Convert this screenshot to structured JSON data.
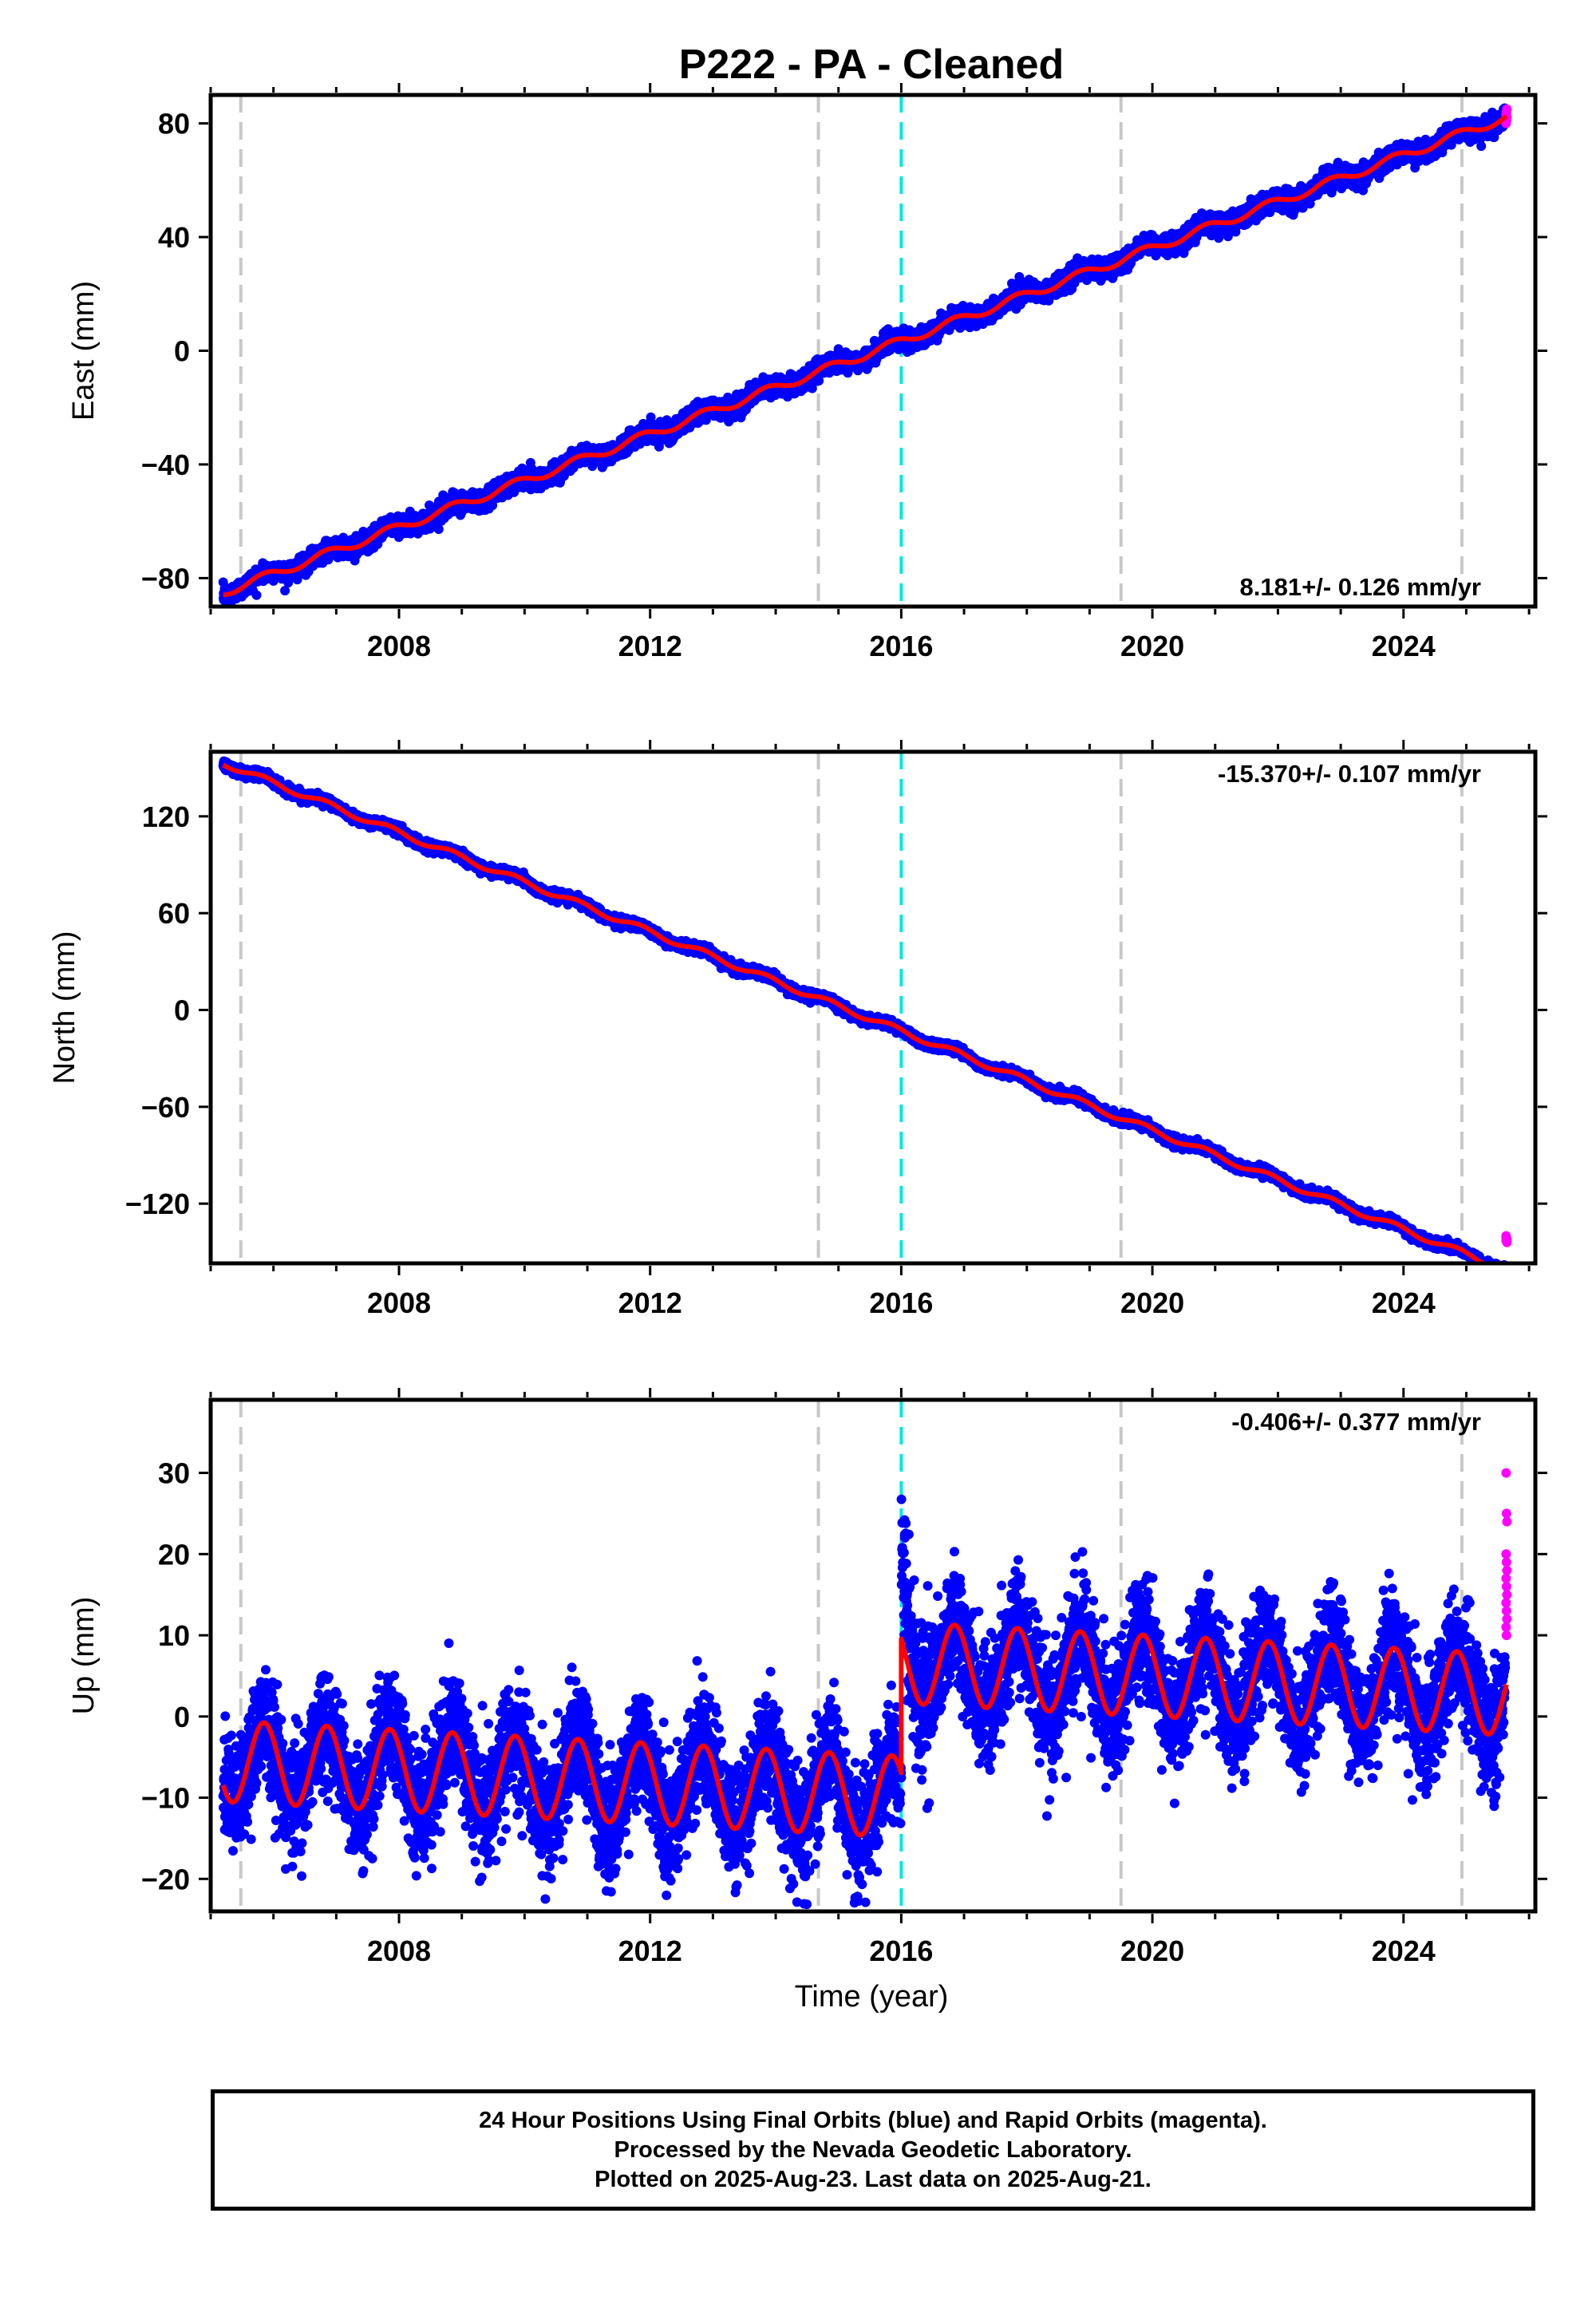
{
  "title": "P222  - PA - Cleaned",
  "xlabel": "Time (year)",
  "footer": [
    "24 Hour Positions Using Final Orbits (blue) and Rapid Orbits (magenta).",
    "Processed by the Nevada Geodetic Laboratory.",
    "Plotted on 2025-Aug-23. Last data on 2025-Aug-21."
  ],
  "colors": {
    "final_orbits": "#0000ff",
    "rapid_orbits": "#ff00ff",
    "model": "#ff0000",
    "equipment_change_lines": "#c8c8c8",
    "event_line": "#00e5e5"
  },
  "chart_data": [
    {
      "type": "scatter",
      "ylabel": "East (mm)",
      "xlim": [
        2005.0,
        2026.1
      ],
      "ylim": [
        -90,
        90
      ],
      "xticks": [
        2008,
        2012,
        2016,
        2020,
        2024
      ],
      "yticks": [
        -80,
        -40,
        0,
        40,
        80
      ],
      "rate_label": "8.181+/- 0.126 mm/yr",
      "rate_position": "bottom-right",
      "rate_mm_per_yr": 8.181,
      "value_at_start": -85,
      "start_year": 2005.2,
      "end_year": 2025.64,
      "annual_amplitude_mm": 1.5,
      "scatter_mm": 1.6,
      "offset_at_event_mm": 0,
      "rapid_values": [
        80,
        81,
        82,
        83,
        84,
        85,
        83,
        82
      ],
      "gray_lines_years": [
        2005.48,
        2014.68,
        2019.5,
        2024.93
      ],
      "event_line_year": 2016.0
    },
    {
      "type": "scatter",
      "ylabel": "North (mm)",
      "xlim": [
        2005.0,
        2026.1
      ],
      "ylim": [
        -157,
        160
      ],
      "xticks": [
        2008,
        2012,
        2016,
        2020,
        2024
      ],
      "yticks": [
        -120,
        -60,
        0,
        60,
        120
      ],
      "rate_label": "-15.370+/- 0.107 mm/yr",
      "rate_position": "top-right",
      "rate_mm_per_yr": -15.37,
      "value_at_start": 153,
      "start_year": 2005.2,
      "end_year": 2025.64,
      "annual_amplitude_mm": 1.8,
      "scatter_mm": 1.4,
      "offset_at_event_mm": 0,
      "rapid_values": [
        -143,
        -142,
        -144,
        -141,
        -143,
        -142,
        -140,
        -143
      ],
      "gray_lines_years": [
        2005.48,
        2014.68,
        2019.5,
        2024.93
      ],
      "event_line_year": 2016.0
    },
    {
      "type": "scatter",
      "ylabel": "Up (mm)",
      "xlim": [
        2005.0,
        2026.1
      ],
      "ylim": [
        -24,
        39
      ],
      "xticks": [
        2008,
        2012,
        2016,
        2020,
        2024
      ],
      "yticks": [
        -20,
        -10,
        0,
        10,
        20,
        30
      ],
      "rate_label": "-0.406+/- 0.377 mm/yr",
      "rate_position": "top-right",
      "rate_mm_per_yr": -0.406,
      "value_at_start": -5.5,
      "start_year": 2005.2,
      "end_year": 2025.64,
      "annual_amplitude_mm": 5.0,
      "scatter_mm": 3.5,
      "offset_at_event_mm": 16.5,
      "rapid_values": [
        30,
        25,
        24,
        20,
        19,
        18,
        17,
        16,
        15,
        14,
        13,
        12,
        11,
        10
      ],
      "gray_lines_years": [
        2005.48,
        2014.68,
        2019.5,
        2024.93
      ],
      "event_line_year": 2016.0
    }
  ]
}
